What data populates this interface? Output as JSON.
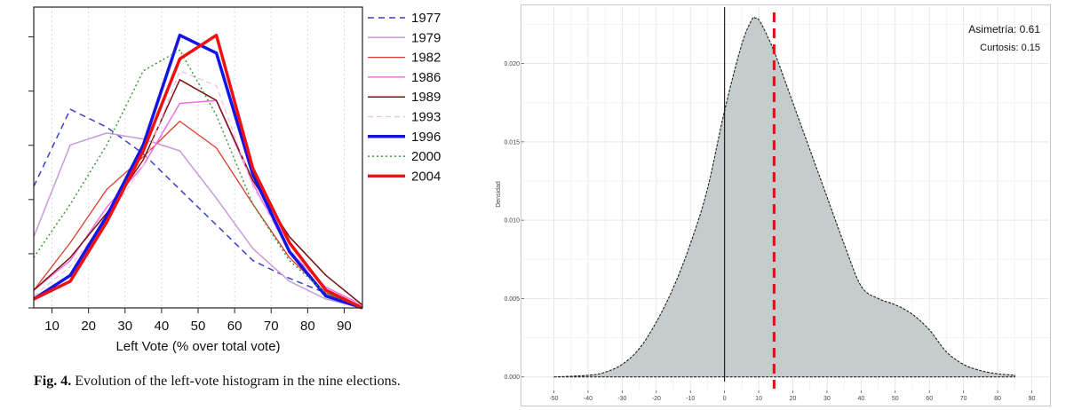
{
  "caption": {
    "label": "Fig. 4.",
    "text": "Evolution of the left-vote histogram in the nine elections."
  },
  "chart_data": [
    {
      "type": "line",
      "xlabel": "Left Vote (% over total vote)",
      "xlim": [
        5,
        95
      ],
      "ylim": [
        0,
        1
      ],
      "xticks": [
        10,
        20,
        30,
        40,
        50,
        60,
        70,
        80,
        90
      ],
      "legend_position": "right",
      "series": [
        {
          "name": "1977",
          "color": "#3a3fd0",
          "dash": "7,5",
          "width": 1.5,
          "x": [
            5,
            15,
            25,
            35,
            45,
            55,
            65,
            75,
            85,
            95
          ],
          "y": [
            0.41,
            0.67,
            0.61,
            0.52,
            0.4,
            0.28,
            0.16,
            0.1,
            0.05,
            0.0
          ]
        },
        {
          "name": "1979",
          "color": "#c79bd9",
          "dash": "",
          "width": 1.5,
          "x": [
            5,
            15,
            25,
            35,
            45,
            55,
            65,
            75,
            85,
            95
          ],
          "y": [
            0.24,
            0.55,
            0.59,
            0.57,
            0.53,
            0.37,
            0.2,
            0.09,
            0.03,
            0.0
          ]
        },
        {
          "name": "1982",
          "color": "#e03a2a",
          "dash": "",
          "width": 1.3,
          "x": [
            5,
            15,
            25,
            35,
            45,
            55,
            65,
            75,
            85,
            95
          ],
          "y": [
            0.06,
            0.22,
            0.4,
            0.51,
            0.63,
            0.54,
            0.35,
            0.17,
            0.05,
            0.0
          ]
        },
        {
          "name": "1986",
          "color": "#ee70e6",
          "dash": "",
          "width": 1.5,
          "x": [
            5,
            15,
            25,
            35,
            45,
            55,
            65,
            75,
            85,
            95
          ],
          "y": [
            0.06,
            0.16,
            0.34,
            0.48,
            0.69,
            0.7,
            0.42,
            0.19,
            0.07,
            0.01
          ]
        },
        {
          "name": "1989",
          "color": "#7a1010",
          "dash": "",
          "width": 1.5,
          "x": [
            5,
            15,
            25,
            35,
            45,
            55,
            65,
            75,
            85,
            95
          ],
          "y": [
            0.06,
            0.17,
            0.32,
            0.5,
            0.77,
            0.7,
            0.43,
            0.24,
            0.11,
            0.01
          ]
        },
        {
          "name": "1993",
          "color": "#edbfe9",
          "dash": "6,4",
          "width": 1.3,
          "x": [
            5,
            15,
            25,
            35,
            45,
            55,
            65,
            75,
            85,
            95
          ],
          "y": [
            0.04,
            0.14,
            0.3,
            0.48,
            0.8,
            0.75,
            0.41,
            0.2,
            0.06,
            0.01
          ]
        },
        {
          "name": "1996",
          "color": "#1414e6",
          "dash": "",
          "width": 3.5,
          "x": [
            5,
            15,
            25,
            35,
            45,
            55,
            65,
            75,
            85,
            95
          ],
          "y": [
            0.03,
            0.11,
            0.31,
            0.55,
            0.92,
            0.86,
            0.45,
            0.19,
            0.04,
            0.0
          ]
        },
        {
          "name": "2000",
          "color": "#3a9a3a",
          "dash": "2,3",
          "width": 1.5,
          "x": [
            5,
            15,
            25,
            35,
            45,
            55,
            65,
            75,
            85,
            95
          ],
          "y": [
            0.17,
            0.35,
            0.55,
            0.8,
            0.87,
            0.65,
            0.35,
            0.16,
            0.05,
            0.0
          ]
        },
        {
          "name": "2004",
          "color": "#ee1111",
          "dash": "",
          "width": 3.5,
          "x": [
            5,
            15,
            25,
            35,
            45,
            55,
            65,
            75,
            85,
            95
          ],
          "y": [
            0.03,
            0.09,
            0.29,
            0.53,
            0.84,
            0.92,
            0.47,
            0.22,
            0.06,
            0.0
          ]
        }
      ]
    },
    {
      "type": "area",
      "ylabel": "Densidad",
      "xlim": [
        -53,
        93
      ],
      "ylim": [
        -0.0003,
        0.0236
      ],
      "xticks": [
        -50,
        -40,
        -30,
        -20,
        -10,
        0,
        10,
        20,
        30,
        40,
        50,
        60,
        70,
        80,
        90
      ],
      "yticks": [
        0.0,
        0.005,
        0.01,
        0.015,
        0.02
      ],
      "ytick_labels": [
        "0.000",
        "0.005",
        "0.010",
        "0.015",
        "0.020"
      ],
      "annotations": [
        "Asimetría: 0.61",
        "Curtosis: 0.15"
      ],
      "fill_color": "#c4cccc",
      "vline_solid": 0,
      "vline_dashed": 14.5,
      "x": [
        -50,
        -40,
        -35,
        -30,
        -25,
        -20,
        -15,
        -10,
        -5,
        0,
        5,
        8,
        9,
        10,
        12,
        15,
        20,
        25,
        30,
        35,
        40,
        45,
        50,
        55,
        60,
        65,
        70,
        75,
        80,
        85
      ],
      "y": [
        0.0,
        0.0001,
        0.0003,
        0.0008,
        0.0018,
        0.0035,
        0.0057,
        0.0085,
        0.012,
        0.017,
        0.0212,
        0.0228,
        0.0229,
        0.0228,
        0.022,
        0.0205,
        0.0175,
        0.0145,
        0.0115,
        0.0085,
        0.0058,
        0.005,
        0.0046,
        0.004,
        0.003,
        0.0016,
        0.0008,
        0.0004,
        0.0002,
        0.0001
      ]
    }
  ]
}
